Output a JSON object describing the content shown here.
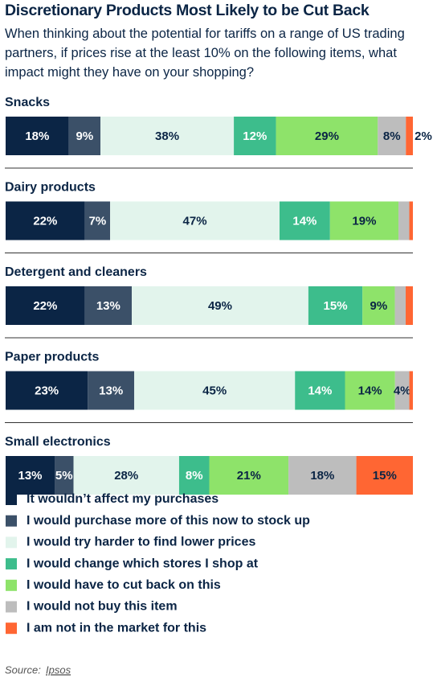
{
  "chart_data": {
    "type": "stacked-bar-horizontal",
    "title": "Discretionary Products Most Likely to be Cut Back",
    "subtitle": "When thinking about the potential for tariffs on a range of US trading partners, if prices rise at the least 10% on the following items, what impact might they have on your shopping?",
    "categories": [
      "Snacks",
      "Dairy products",
      "Detergent and cleaners",
      "Paper products",
      "Small electronics"
    ],
    "series": [
      {
        "name": "It wouldn’t affect my purchases",
        "color": "#0b2545",
        "label_color": "#ffffff",
        "values": [
          18,
          22,
          22,
          23,
          13
        ],
        "value_labels": [
          "18%",
          "22%",
          "22%",
          "23%",
          "13%"
        ]
      },
      {
        "name": "I would purchase more of this now to stock up",
        "color": "#3b5068",
        "label_color": "#ffffff",
        "values": [
          9,
          7,
          13,
          13,
          5
        ],
        "value_labels": [
          "9%",
          "7%",
          "13%",
          "13%",
          "5%"
        ]
      },
      {
        "name": "I would try harder to find lower prices",
        "color": "#e2f4ec",
        "label_color": "#0b2545",
        "values": [
          38,
          47,
          49,
          45,
          28
        ],
        "value_labels": [
          "38%",
          "47%",
          "49%",
          "45%",
          "28%"
        ]
      },
      {
        "name": "I would change which stores I shop at",
        "color": "#3dbd8c",
        "label_color": "#ffffff",
        "values": [
          12,
          14,
          15,
          14,
          8
        ],
        "value_labels": [
          "12%",
          "14%",
          "15%",
          "14%",
          "8%"
        ]
      },
      {
        "name": "I would have to cut back on this",
        "color": "#8ee36a",
        "label_color": "#0b2545",
        "values": [
          29,
          19,
          9,
          14,
          21
        ],
        "value_labels": [
          "29%",
          "19%",
          "9%",
          "14%",
          "21%"
        ]
      },
      {
        "name": "I would not buy this item",
        "color": "#bdbdbd",
        "label_color": "#0b2545",
        "values": [
          8,
          3,
          3,
          4,
          18
        ],
        "value_labels": [
          "8%",
          null,
          null,
          "4%",
          "18%"
        ]
      },
      {
        "name": "I am not in the market for this",
        "color": "#ff6633",
        "label_color": "#0b2545",
        "values": [
          2,
          1,
          2,
          1,
          15
        ],
        "value_labels": [
          "2%",
          null,
          null,
          null,
          "15%"
        ]
      }
    ],
    "source_label": "Source:",
    "source": "Ipsos"
  }
}
